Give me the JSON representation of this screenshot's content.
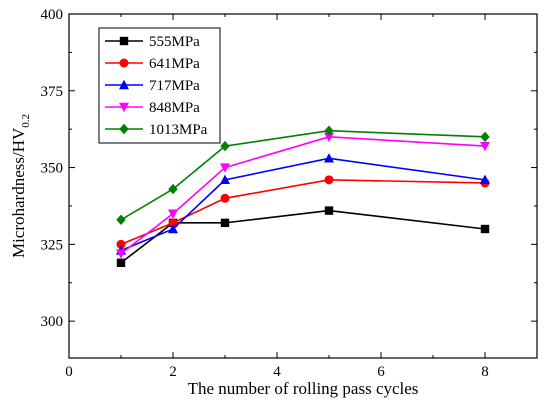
{
  "chart_data": {
    "type": "line",
    "xlabel": "The number of rolling pass cycles",
    "ylabel": "Microhardness/HV",
    "ylabel_subscript": "0.2",
    "xlim": [
      0,
      9
    ],
    "ylim": [
      288,
      400
    ],
    "xticks": [
      "0",
      "2",
      "4",
      "6",
      "8"
    ],
    "yticks": [
      "300",
      "325",
      "350",
      "375",
      "400"
    ],
    "legend_position": "top-left",
    "grid": false,
    "x": [
      1,
      2,
      3,
      5,
      8
    ],
    "series": [
      {
        "name": "555MPa",
        "color": "#000000",
        "marker": "square",
        "values": [
          319,
          332,
          332,
          336,
          330
        ]
      },
      {
        "name": "641MPa",
        "color": "#ff0000",
        "marker": "circle",
        "values": [
          325,
          332,
          340,
          346,
          345
        ]
      },
      {
        "name": "717MPa",
        "color": "#0000ff",
        "marker": "triangle-up",
        "values": [
          323,
          330,
          346,
          353,
          346
        ]
      },
      {
        "name": "848MPa",
        "color": "#ff00ff",
        "marker": "triangle-down",
        "values": [
          322,
          335,
          350,
          360,
          357
        ]
      },
      {
        "name": "1013MPa",
        "color": "#008000",
        "marker": "diamond",
        "values": [
          333,
          343,
          357,
          362,
          360
        ]
      }
    ]
  }
}
